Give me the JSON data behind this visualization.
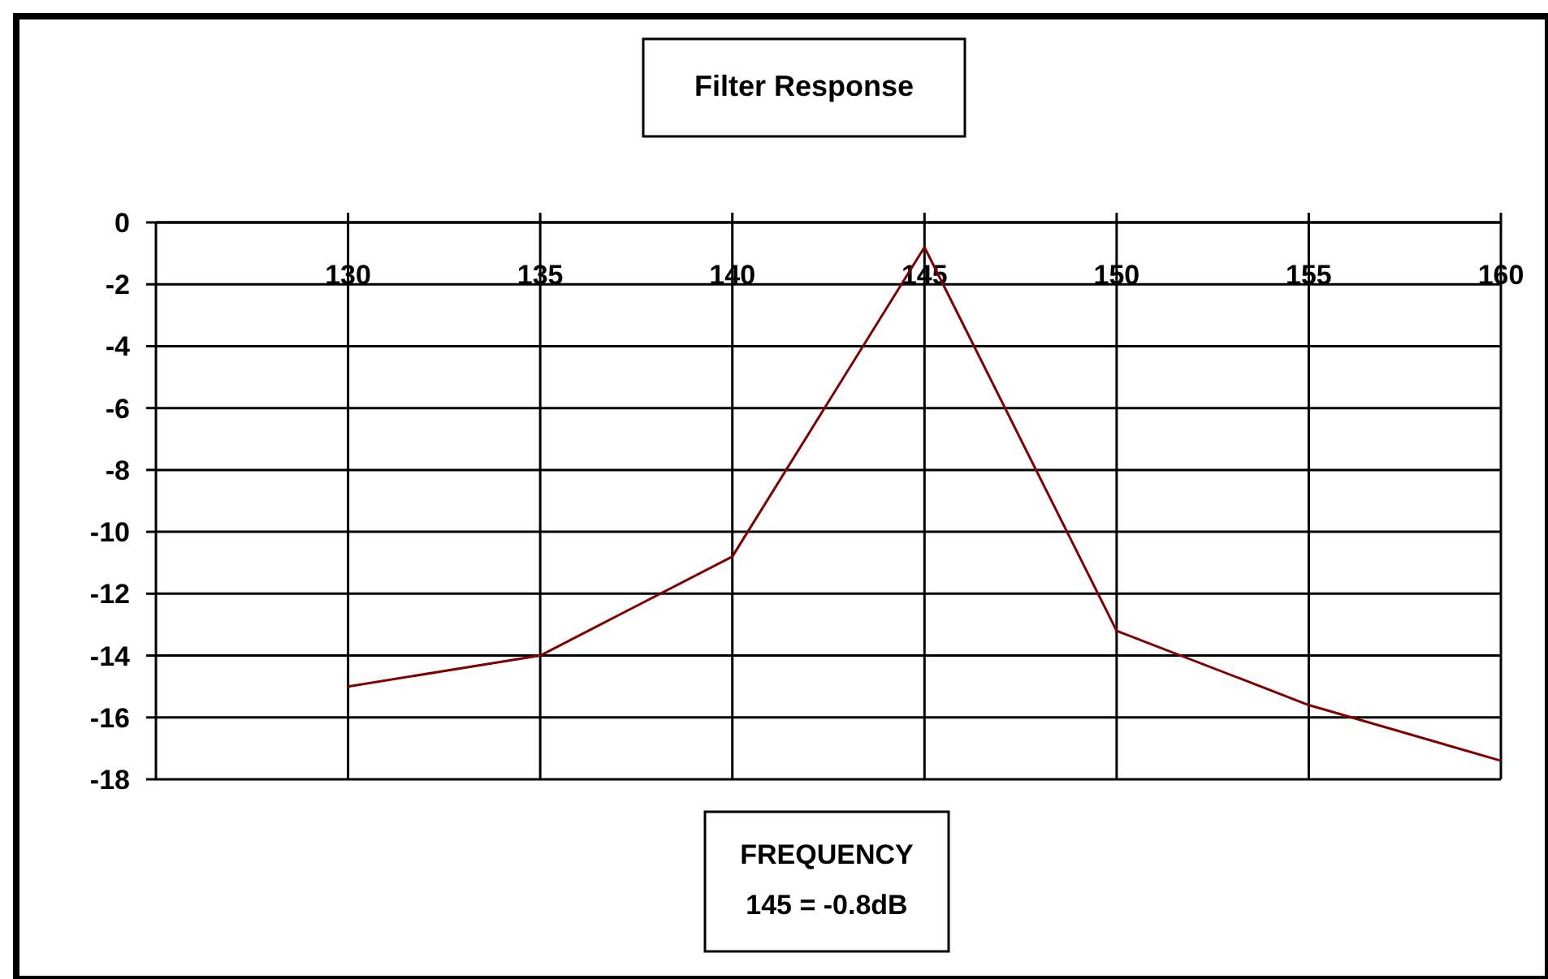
{
  "chart_data": {
    "type": "line",
    "title": "Filter Response",
    "xlabel": "FREQUENCY",
    "annotations": [
      "145 = -0.8dB"
    ],
    "x": [
      130,
      135,
      140,
      145,
      150,
      155,
      160
    ],
    "series": [
      {
        "color": "#800000",
        "values": [
          -15.0,
          -14.0,
          -10.8,
          -0.8,
          -13.2,
          -15.6,
          -17.4
        ]
      }
    ],
    "xlim": [
      125,
      160
    ],
    "xticks": [
      130,
      135,
      140,
      145,
      150,
      155,
      160
    ],
    "ylim": [
      -18,
      0
    ],
    "yticks": [
      0,
      -2,
      -4,
      -6,
      -8,
      -10,
      -12,
      -14,
      -16,
      -18
    ],
    "grid": true,
    "marker": "none",
    "line_style": "solid"
  }
}
